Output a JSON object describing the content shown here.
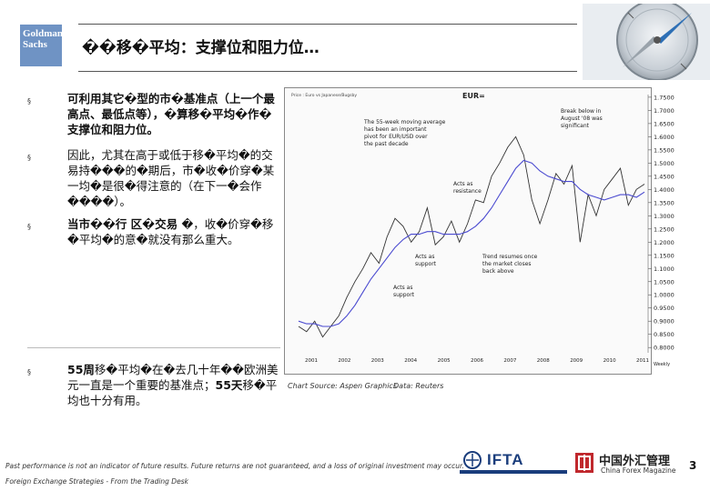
{
  "logo": {
    "line1": "Goldman",
    "line2": "Sachs"
  },
  "title": "��移�平均：支撑位和阻力位…",
  "bullets": [
    {
      "mark": "§",
      "text": "可利用其它�型的市�基准点（上一个最高点、最低点等），�算移�平均�作�支撑位和阻力位。"
    },
    {
      "mark": "§",
      "text": "因此，尤其在高于或低于移�平均�的交易持���的�期后，市�收�价穿�某一均�是很�得注意的（在下一�会作����）。"
    },
    {
      "mark": "§",
      "text_lead": "当市��行 区�交易 ",
      "text_rest": "�，收�价穿�移�平均�的意�就没有那么重大。"
    },
    {
      "mark": "§",
      "text_lead": "55周",
      "text_mid": "移�平均�在�去几十年��欧洲美元一直是一个重要的基准点；",
      "text_lead2": "55天",
      "text_rest": "移�平均也十分有用。"
    }
  ],
  "chart_data": {
    "type": "line",
    "title": "EUR=",
    "header_text": "Price : Euro vs Japanese/Bugsby",
    "yticks": [
      "1.7500",
      "1.7000",
      "1.6500",
      "1.6000",
      "1.5500",
      "1.5000",
      "1.4500",
      "1.4000",
      "1.3500",
      "1.3000",
      "1.2500",
      "1.2000",
      "1.1500",
      "1.1000",
      "1.0500",
      "1.0000",
      "0.9500",
      "0.9000",
      "0.8500",
      "0.8000"
    ],
    "ylim": [
      0.78,
      1.76
    ],
    "xticks": [
      "2001",
      "2002",
      "2003",
      "2004",
      "2005",
      "2006",
      "2007",
      "2008",
      "2009",
      "2010",
      "2011"
    ],
    "xlabel": "Weekly",
    "series": [
      {
        "values": [
          0.88,
          0.86,
          0.9,
          0.84,
          0.88,
          0.92,
          0.99,
          1.05,
          1.1,
          1.16,
          1.12,
          1.22,
          1.29,
          1.26,
          1.2,
          1.24,
          1.33,
          1.19,
          1.22,
          1.28,
          1.2,
          1.27,
          1.36,
          1.35,
          1.45,
          1.5,
          1.56,
          1.6,
          1.53,
          1.36,
          1.27,
          1.36,
          1.46,
          1.42,
          1.49,
          1.2,
          1.38,
          1.3,
          1.4,
          1.44,
          1.48,
          1.34,
          1.4,
          1.42
        ]
      },
      {
        "values": [
          0.9,
          0.89,
          0.89,
          0.88,
          0.88,
          0.89,
          0.92,
          0.96,
          1.01,
          1.06,
          1.1,
          1.14,
          1.18,
          1.21,
          1.23,
          1.23,
          1.24,
          1.24,
          1.23,
          1.23,
          1.23,
          1.24,
          1.26,
          1.29,
          1.33,
          1.38,
          1.43,
          1.48,
          1.51,
          1.5,
          1.47,
          1.45,
          1.44,
          1.43,
          1.43,
          1.4,
          1.38,
          1.37,
          1.36,
          1.37,
          1.38,
          1.38,
          1.37,
          1.39
        ]
      }
    ],
    "annotations": [
      "The 55-week moving average has been an important pivot for EUR/USD over the past decade",
      "Break below in August '08 was significant",
      "Acts as resistance",
      "Trend resumes once the market closes back above",
      "Acts as support",
      "Acts as support"
    ]
  },
  "captions": {
    "source": "Chart Source: Aspen Graphics",
    "data": "Data: Reuters"
  },
  "footnote": "Past performance is not an indicator of future results. Future returns are not guaranteed, and a loss of original investment may occur.",
  "footer_title": "Foreign Exchange Strategies - From the Trading Desk",
  "ifta": {
    "name": "IFTA",
    "color": "#1a3d7c"
  },
  "cfm": {
    "cn": "中国外汇管理",
    "en": "China Forex Magazine"
  },
  "page_number": "3"
}
